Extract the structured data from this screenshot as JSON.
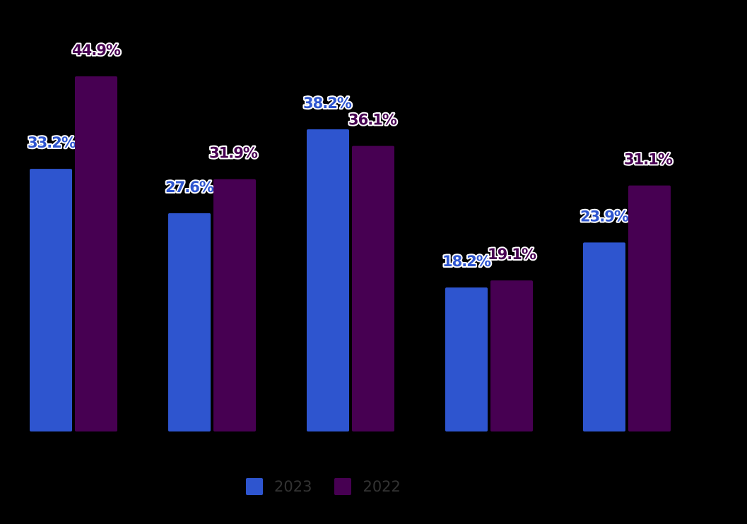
{
  "chart_data": {
    "type": "bar",
    "title": "",
    "xlabel": "",
    "ylabel": "",
    "categories": [
      "",
      "",
      "",
      "",
      ""
    ],
    "ylim": [
      0,
      47
    ],
    "grid": false,
    "legend_position": "bottom",
    "series": [
      {
        "name": "2023",
        "color": "#2e55cf",
        "values": [
          33.2,
          27.6,
          38.2,
          18.2,
          23.9
        ],
        "labels": [
          "33.2%",
          "27.6%",
          "38.2%",
          "18.2%",
          "23.9%"
        ]
      },
      {
        "name": "2022",
        "color": "#470052",
        "values": [
          44.9,
          31.9,
          36.1,
          19.1,
          31.1
        ],
        "labels": [
          "44.9%",
          "31.9%",
          "36.1%",
          "19.1%",
          "31.1%"
        ]
      }
    ]
  }
}
